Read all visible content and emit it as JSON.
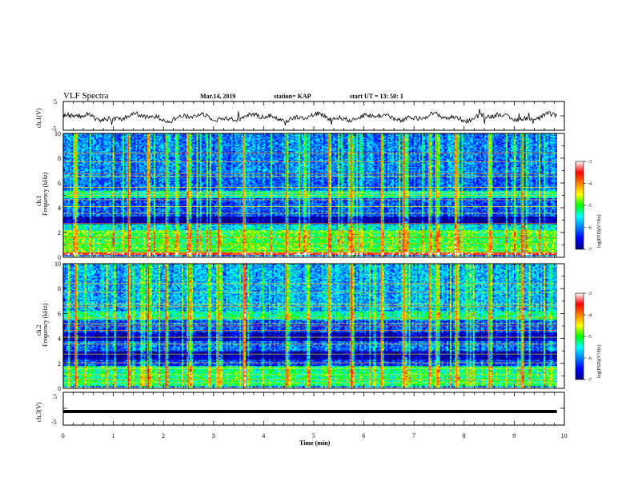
{
  "header": {
    "title": "VLF Spectra",
    "date": "Mar.14, 2019",
    "station": "station= KAP",
    "start_time": "start  UT =   13: 50: 1"
  },
  "chart_data": [
    {
      "type": "line",
      "name": "ch1-waveform",
      "ylabel": "ch.1(V)",
      "xlim": [
        0,
        10
      ],
      "ylim": [
        -5,
        5
      ],
      "yticks": [
        "5",
        "-5"
      ],
      "description_values": {
        "mean": -0.5,
        "amplitude": 2.0,
        "x_end": 9.85
      }
    },
    {
      "type": "heatmap",
      "name": "ch1-spectrogram",
      "ylabel": "ch.1\nFrequency (kHz)",
      "ylabel_line1": "ch.1",
      "ylabel_line2": "Frequency (kHz)",
      "xlim": [
        0,
        10
      ],
      "ylim": [
        0,
        10
      ],
      "yticks": [
        "0",
        "2",
        "4",
        "6",
        "8",
        "10"
      ],
      "colorbar": {
        "label": "log(PSD)(V²/Hz)",
        "min": -7,
        "max": -3,
        "ticks": [
          "-3",
          "-4",
          "-5",
          "-6",
          "-7"
        ]
      },
      "bands": [
        {
          "f": [
            0.2,
            0.4
          ],
          "level": -3.6
        },
        {
          "f": [
            0.4,
            2.2
          ],
          "level": -5.0
        },
        {
          "f": [
            2.2,
            2.7
          ],
          "level": -5.6
        },
        {
          "f": [
            2.7,
            3.3
          ],
          "level": -6.9
        },
        {
          "f": [
            3.3,
            4.8
          ],
          "level": -6.2
        },
        {
          "f": [
            4.8,
            5.4
          ],
          "level": -5.4
        },
        {
          "f": [
            5.4,
            6.4
          ],
          "level": -6.1
        },
        {
          "f": [
            6.4,
            10.0
          ],
          "level": -6.0
        }
      ],
      "bursts_min": [
        0.25,
        1.3,
        1.7,
        2.05,
        2.5,
        3.1,
        3.6,
        4.45,
        5.3,
        5.75,
        6.35,
        6.8,
        7.3,
        7.45,
        7.85,
        8.5,
        9.15
      ]
    },
    {
      "type": "heatmap",
      "name": "ch2-spectrogram",
      "ylabel_line1": "ch.2",
      "ylabel_line2": "Frequency (kHz)",
      "xlim": [
        0,
        10
      ],
      "ylim": [
        0,
        10
      ],
      "yticks": [
        "0",
        "2",
        "4",
        "6",
        "8",
        "10"
      ],
      "colorbar": {
        "label": "log(PSD)(V²/Hz)",
        "min": -7,
        "max": -3,
        "ticks": [
          "-3",
          "-4",
          "-5",
          "-6",
          "-7"
        ]
      },
      "bands": [
        {
          "f": [
            0.2,
            1.8
          ],
          "level": -5.2
        },
        {
          "f": [
            1.8,
            2.3
          ],
          "level": -6.3
        },
        {
          "f": [
            2.3,
            3.0
          ],
          "level": -6.9
        },
        {
          "f": [
            3.0,
            3.8
          ],
          "level": -6.1
        },
        {
          "f": [
            3.8,
            4.5
          ],
          "level": -6.8
        },
        {
          "f": [
            4.5,
            5.5
          ],
          "level": -6.2
        },
        {
          "f": [
            5.5,
            6.2
          ],
          "level": -5.3
        },
        {
          "f": [
            6.2,
            10.0
          ],
          "level": -5.8
        }
      ],
      "bursts_min": [
        0.25,
        1.3,
        1.7,
        2.05,
        2.5,
        3.1,
        3.6,
        4.45,
        5.3,
        5.75,
        6.35,
        6.8,
        7.3,
        7.45,
        7.85,
        8.5,
        9.15
      ]
    },
    {
      "type": "line",
      "name": "ch3-waveform",
      "ylabel": "ch.3(V)",
      "xlim": [
        0,
        10
      ],
      "ylim": [
        -5,
        5
      ],
      "yticks": [
        "5",
        "-5"
      ],
      "constant_value": -1.0,
      "x_end": 9.85,
      "xlabel": "Time (min)",
      "xticks": [
        "0",
        "1",
        "2",
        "3",
        "4",
        "5",
        "6",
        "7",
        "8",
        "9",
        "10"
      ]
    }
  ]
}
